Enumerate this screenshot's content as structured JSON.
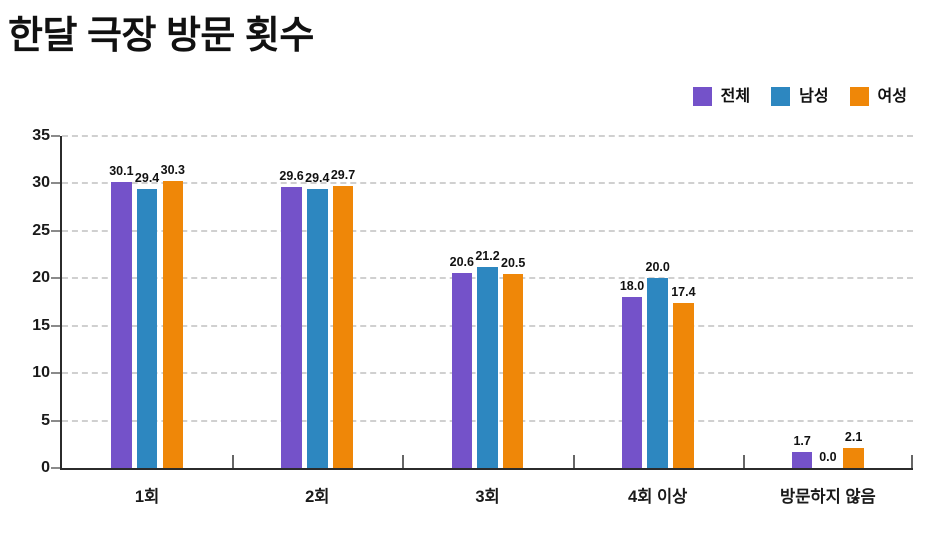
{
  "title": "한달 극장 방문 횟수",
  "legend": {
    "items": [
      {
        "label": "전체",
        "color": "#7452C9"
      },
      {
        "label": "남성",
        "color": "#2D87C0"
      },
      {
        "label": "여성",
        "color": "#EF8708"
      }
    ]
  },
  "chart_data": {
    "type": "bar",
    "title": "한달 극장 방문 횟수",
    "categories": [
      "1회",
      "2회",
      "3회",
      "4회 이상",
      "방문하지 않음"
    ],
    "series": [
      {
        "name": "전체",
        "color": "#7452C9",
        "values": [
          30.1,
          29.6,
          20.6,
          18.0,
          1.7
        ]
      },
      {
        "name": "남성",
        "color": "#2D87C0",
        "values": [
          29.4,
          29.4,
          21.2,
          20.0,
          0.0
        ]
      },
      {
        "name": "여성",
        "color": "#EF8708",
        "values": [
          30.3,
          29.7,
          20.5,
          17.4,
          2.1
        ]
      }
    ],
    "xlabel": "",
    "ylabel": "",
    "ylim": [
      0,
      35
    ],
    "yticks": [
      0,
      5,
      10,
      15,
      20,
      25,
      30,
      35
    ],
    "grid": "horizontal-dashed",
    "legend_position": "top-right",
    "value_labels": true,
    "value_format": "0.0"
  },
  "style": {
    "background": "#ffffff",
    "axis_color": "#2b2b2b",
    "grid_color": "#d0d0d0",
    "tick_color": "#8a8a8a",
    "text_color": "#111111"
  }
}
